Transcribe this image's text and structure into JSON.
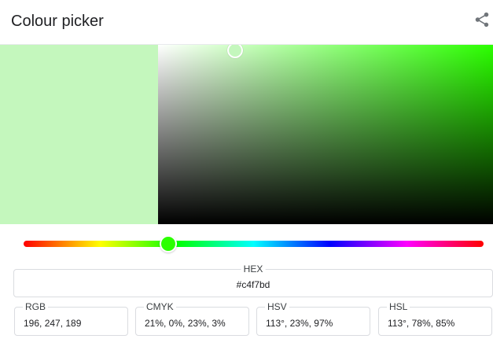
{
  "header": {
    "title": "Colour picker",
    "share_icon": "share-icon"
  },
  "color": {
    "hex": "#c4f7bd",
    "hue_hex": "#2bff00",
    "hue_degrees": 113,
    "saturation_pct": 23,
    "value_pct": 97
  },
  "fields": {
    "hex": {
      "label": "HEX",
      "value": "#c4f7bd"
    },
    "rgb": {
      "label": "RGB",
      "value": "196, 247, 189"
    },
    "cmyk": {
      "label": "CMYK",
      "value": "21%, 0%, 23%, 3%"
    },
    "hsv": {
      "label": "HSV",
      "value": "113°, 23%, 97%"
    },
    "hsl": {
      "label": "HSL",
      "value": "113°, 78%, 85%"
    }
  }
}
